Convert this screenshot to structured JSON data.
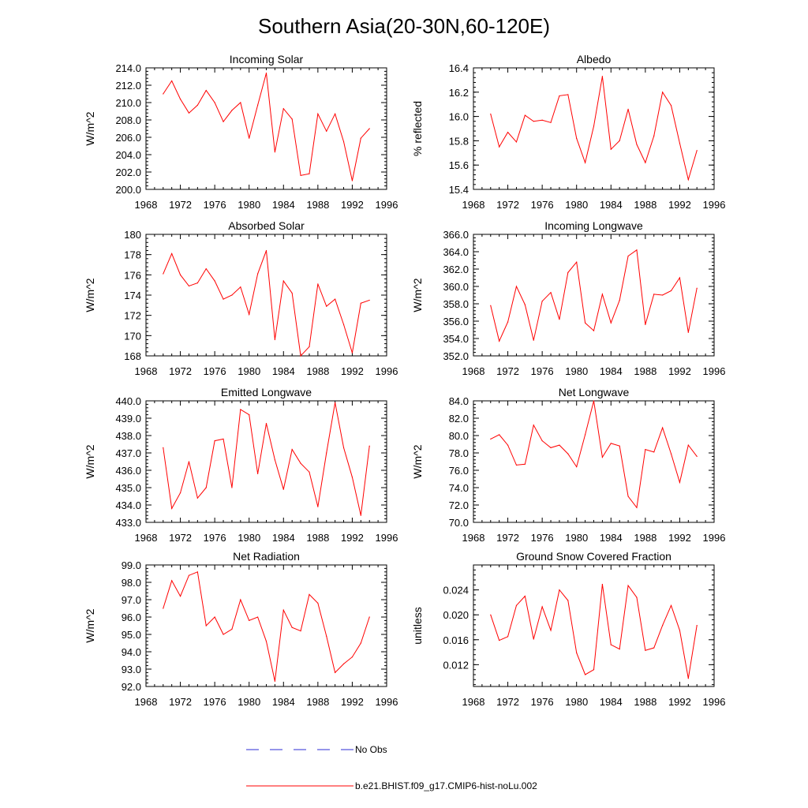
{
  "figure": {
    "title": "Southern Asia(20-30N,60-120E)",
    "legend": [
      {
        "label": "No Obs",
        "color": "#2b2bd6",
        "style": "dashed"
      },
      {
        "label": "b.e21.BHIST.f09_g17.CMIP6-hist-noLu.002",
        "color": "#ff0000",
        "style": "solid"
      }
    ]
  },
  "chart_data": [
    {
      "type": "line",
      "title": "Incoming Solar",
      "xlabel": "",
      "ylabel": "W/m^2",
      "xlim": [
        1968,
        1996
      ],
      "ylim": [
        200,
        214
      ],
      "xticks": [
        1968,
        1972,
        1976,
        1980,
        1984,
        1988,
        1992,
        1996
      ],
      "yticks": [
        200,
        202,
        204,
        206,
        208,
        210,
        212,
        214
      ],
      "ytick_labels": [
        "200.0",
        "202.0",
        "204.0",
        "206.0",
        "208.0",
        "210.0",
        "212.0",
        "214.0"
      ],
      "series": [
        {
          "name": "b.e21.BHIST.f09_g17.CMIP6-hist-noLu.002",
          "color": "#ff0000",
          "x": [
            1970,
            1971,
            1972,
            1973,
            1974,
            1975,
            1976,
            1977,
            1978,
            1979,
            1980,
            1981,
            1982,
            1983,
            1984,
            1985,
            1986,
            1987,
            1988,
            1989,
            1990,
            1991,
            1992,
            1993,
            1994
          ],
          "y": [
            211.0,
            212.5,
            210.4,
            208.8,
            209.7,
            211.4,
            210.0,
            207.8,
            209.1,
            210.0,
            205.9,
            209.7,
            213.4,
            204.3,
            209.3,
            208.1,
            201.6,
            201.8,
            208.7,
            206.7,
            208.7,
            205.5,
            201.0,
            205.9,
            207.0
          ]
        }
      ]
    },
    {
      "type": "line",
      "title": "Albedo",
      "xlabel": "",
      "ylabel": "% reflected",
      "xlim": [
        1968,
        1996
      ],
      "ylim": [
        15.4,
        16.4
      ],
      "xticks": [
        1968,
        1972,
        1976,
        1980,
        1984,
        1988,
        1992,
        1996
      ],
      "yticks": [
        15.4,
        15.6,
        15.8,
        16.0,
        16.2,
        16.4
      ],
      "ytick_labels": [
        "15.4",
        "15.6",
        "15.8",
        "16.0",
        "16.2",
        "16.4"
      ],
      "series": [
        {
          "name": "b.e21.BHIST.f09_g17.CMIP6-hist-noLu.002",
          "color": "#ff0000",
          "x": [
            1970,
            1971,
            1972,
            1973,
            1974,
            1975,
            1976,
            1977,
            1978,
            1979,
            1980,
            1981,
            1982,
            1983,
            1984,
            1985,
            1986,
            1987,
            1988,
            1989,
            1990,
            1991,
            1992,
            1993,
            1994
          ],
          "y": [
            16.02,
            15.75,
            15.87,
            15.79,
            16.01,
            15.96,
            15.97,
            15.95,
            16.17,
            16.18,
            15.82,
            15.62,
            15.92,
            16.33,
            15.73,
            15.8,
            16.06,
            15.77,
            15.62,
            15.84,
            16.2,
            16.09,
            15.78,
            15.48,
            15.72
          ]
        }
      ]
    },
    {
      "type": "line",
      "title": "Absorbed Solar",
      "xlabel": "",
      "ylabel": "W/m^2",
      "xlim": [
        1968,
        1996
      ],
      "ylim": [
        168,
        180
      ],
      "xticks": [
        1968,
        1972,
        1976,
        1980,
        1984,
        1988,
        1992,
        1996
      ],
      "yticks": [
        168,
        170,
        172,
        174,
        176,
        178,
        180
      ],
      "ytick_labels": [
        "168",
        "170",
        "172",
        "174",
        "176",
        "178",
        "180"
      ],
      "series": [
        {
          "name": "b.e21.BHIST.f09_g17.CMIP6-hist-noLu.002",
          "color": "#ff0000",
          "x": [
            1970,
            1971,
            1972,
            1973,
            1974,
            1975,
            1976,
            1977,
            1978,
            1979,
            1980,
            1981,
            1982,
            1983,
            1984,
            1985,
            1986,
            1987,
            1988,
            1989,
            1990,
            1991,
            1992,
            1993,
            1994
          ],
          "y": [
            176.1,
            178.1,
            176.0,
            174.9,
            175.2,
            176.6,
            175.4,
            173.6,
            174.0,
            174.8,
            172.1,
            176.1,
            178.4,
            169.6,
            175.4,
            174.2,
            168.0,
            168.9,
            175.1,
            172.9,
            173.6,
            171.1,
            168.3,
            173.2,
            173.5
          ]
        }
      ]
    },
    {
      "type": "line",
      "title": "Incoming Longwave",
      "xlabel": "",
      "ylabel": "W/m^2",
      "xlim": [
        1968,
        1996
      ],
      "ylim": [
        352,
        366
      ],
      "xticks": [
        1968,
        1972,
        1976,
        1980,
        1984,
        1988,
        1992,
        1996
      ],
      "yticks": [
        352,
        354,
        356,
        358,
        360,
        362,
        364,
        366
      ],
      "ytick_labels": [
        "352.0",
        "354.0",
        "356.0",
        "358.0",
        "360.0",
        "362.0",
        "364.0",
        "366.0"
      ],
      "series": [
        {
          "name": "b.e21.BHIST.f09_g17.CMIP6-hist-noLu.002",
          "color": "#ff0000",
          "x": [
            1970,
            1971,
            1972,
            1973,
            1974,
            1975,
            1976,
            1977,
            1978,
            1979,
            1980,
            1981,
            1982,
            1983,
            1984,
            1985,
            1986,
            1987,
            1988,
            1989,
            1990,
            1991,
            1992,
            1993,
            1994
          ],
          "y": [
            357.8,
            353.7,
            355.9,
            360.0,
            357.9,
            353.8,
            358.3,
            359.3,
            356.2,
            361.6,
            362.8,
            355.8,
            354.9,
            359.1,
            355.8,
            358.4,
            363.5,
            364.2,
            355.6,
            359.1,
            359.0,
            359.5,
            361.0,
            354.7,
            359.8
          ]
        }
      ]
    },
    {
      "type": "line",
      "title": "Emitted Longwave",
      "xlabel": "",
      "ylabel": "W/m^2",
      "xlim": [
        1968,
        1996
      ],
      "ylim": [
        433,
        440
      ],
      "xticks": [
        1968,
        1972,
        1976,
        1980,
        1984,
        1988,
        1992,
        1996
      ],
      "yticks": [
        433,
        434,
        435,
        436,
        437,
        438,
        439,
        440
      ],
      "ytick_labels": [
        "433.0",
        "434.0",
        "435.0",
        "436.0",
        "437.0",
        "438.0",
        "439.0",
        "440.0"
      ],
      "series": [
        {
          "name": "b.e21.BHIST.f09_g17.CMIP6-hist-noLu.002",
          "color": "#ff0000",
          "x": [
            1970,
            1971,
            1972,
            1973,
            1974,
            1975,
            1976,
            1977,
            1978,
            1979,
            1980,
            1981,
            1982,
            1983,
            1984,
            1985,
            1986,
            1987,
            1988,
            1989,
            1990,
            1991,
            1992,
            1993,
            1994
          ],
          "y": [
            437.3,
            433.8,
            434.7,
            436.5,
            434.4,
            435.0,
            437.7,
            437.8,
            435.0,
            439.5,
            439.2,
            435.8,
            438.7,
            436.6,
            434.9,
            437.2,
            436.4,
            435.9,
            433.9,
            437.0,
            439.9,
            437.3,
            435.6,
            433.4,
            437.4
          ]
        }
      ]
    },
    {
      "type": "line",
      "title": "Net Longwave",
      "xlabel": "",
      "ylabel": "W/m^2",
      "xlim": [
        1968,
        1996
      ],
      "ylim": [
        70,
        84
      ],
      "xticks": [
        1968,
        1972,
        1976,
        1980,
        1984,
        1988,
        1992,
        1996
      ],
      "yticks": [
        70,
        72,
        74,
        76,
        78,
        80,
        82,
        84
      ],
      "ytick_labels": [
        "70.0",
        "72.0",
        "74.0",
        "76.0",
        "78.0",
        "80.0",
        "82.0",
        "84.0"
      ],
      "series": [
        {
          "name": "b.e21.BHIST.f09_g17.CMIP6-hist-noLu.002",
          "color": "#ff0000",
          "x": [
            1970,
            1971,
            1972,
            1973,
            1974,
            1975,
            1976,
            1977,
            1978,
            1979,
            1980,
            1981,
            1982,
            1983,
            1984,
            1985,
            1986,
            1987,
            1988,
            1989,
            1990,
            1991,
            1992,
            1993,
            1994
          ],
          "y": [
            79.6,
            80.1,
            78.9,
            76.6,
            76.7,
            81.2,
            79.4,
            78.6,
            78.9,
            77.9,
            76.4,
            80.1,
            84.0,
            77.5,
            79.1,
            78.8,
            73.0,
            71.7,
            78.4,
            78.1,
            80.9,
            77.9,
            74.6,
            78.9,
            77.6
          ]
        }
      ]
    },
    {
      "type": "line",
      "title": "Net Radiation",
      "xlabel": "",
      "ylabel": "W/m^2",
      "xlim": [
        1968,
        1996
      ],
      "ylim": [
        92,
        99
      ],
      "xticks": [
        1968,
        1972,
        1976,
        1980,
        1984,
        1988,
        1992,
        1996
      ],
      "yticks": [
        92,
        93,
        94,
        95,
        96,
        97,
        98,
        99
      ],
      "ytick_labels": [
        "92.0",
        "93.0",
        "94.0",
        "95.0",
        "96.0",
        "97.0",
        "98.0",
        "99.0"
      ],
      "series": [
        {
          "name": "b.e21.BHIST.f09_g17.CMIP6-hist-noLu.002",
          "color": "#ff0000",
          "x": [
            1970,
            1971,
            1972,
            1973,
            1974,
            1975,
            1976,
            1977,
            1978,
            1979,
            1980,
            1981,
            1982,
            1983,
            1984,
            1985,
            1986,
            1987,
            1988,
            1989,
            1990,
            1991,
            1992,
            1993,
            1994
          ],
          "y": [
            96.5,
            98.1,
            97.2,
            98.4,
            98.6,
            95.5,
            96.0,
            95.0,
            95.3,
            97.0,
            95.8,
            96.0,
            94.6,
            92.3,
            96.4,
            95.4,
            95.2,
            97.3,
            96.8,
            94.9,
            92.8,
            93.3,
            93.7,
            94.5,
            96.0
          ]
        }
      ]
    },
    {
      "type": "line",
      "title": "Ground Snow Covered Fraction",
      "xlabel": "",
      "ylabel": "unitless",
      "xlim": [
        1968,
        1996
      ],
      "ylim": [
        0.0085,
        0.028
      ],
      "xticks": [
        1968,
        1972,
        1976,
        1980,
        1984,
        1988,
        1992,
        1996
      ],
      "yticks": [
        0.012,
        0.016,
        0.02,
        0.024
      ],
      "ytick_labels": [
        "0.012",
        "0.016",
        "0.020",
        "0.024"
      ],
      "series": [
        {
          "name": "b.e21.BHIST.f09_g17.CMIP6-hist-noLu.002",
          "color": "#ff0000",
          "x": [
            1970,
            1971,
            1972,
            1973,
            1974,
            1975,
            1976,
            1977,
            1978,
            1979,
            1980,
            1981,
            1982,
            1983,
            1984,
            1985,
            1986,
            1987,
            1988,
            1989,
            1990,
            1991,
            1992,
            1993,
            1994
          ],
          "y": [
            0.02,
            0.0159,
            0.0165,
            0.0215,
            0.023,
            0.0161,
            0.0213,
            0.0175,
            0.024,
            0.0223,
            0.0139,
            0.0104,
            0.0112,
            0.0249,
            0.0152,
            0.0145,
            0.0247,
            0.0228,
            0.0143,
            0.0147,
            0.0183,
            0.0215,
            0.0175,
            0.0098,
            0.0183
          ]
        }
      ]
    }
  ]
}
